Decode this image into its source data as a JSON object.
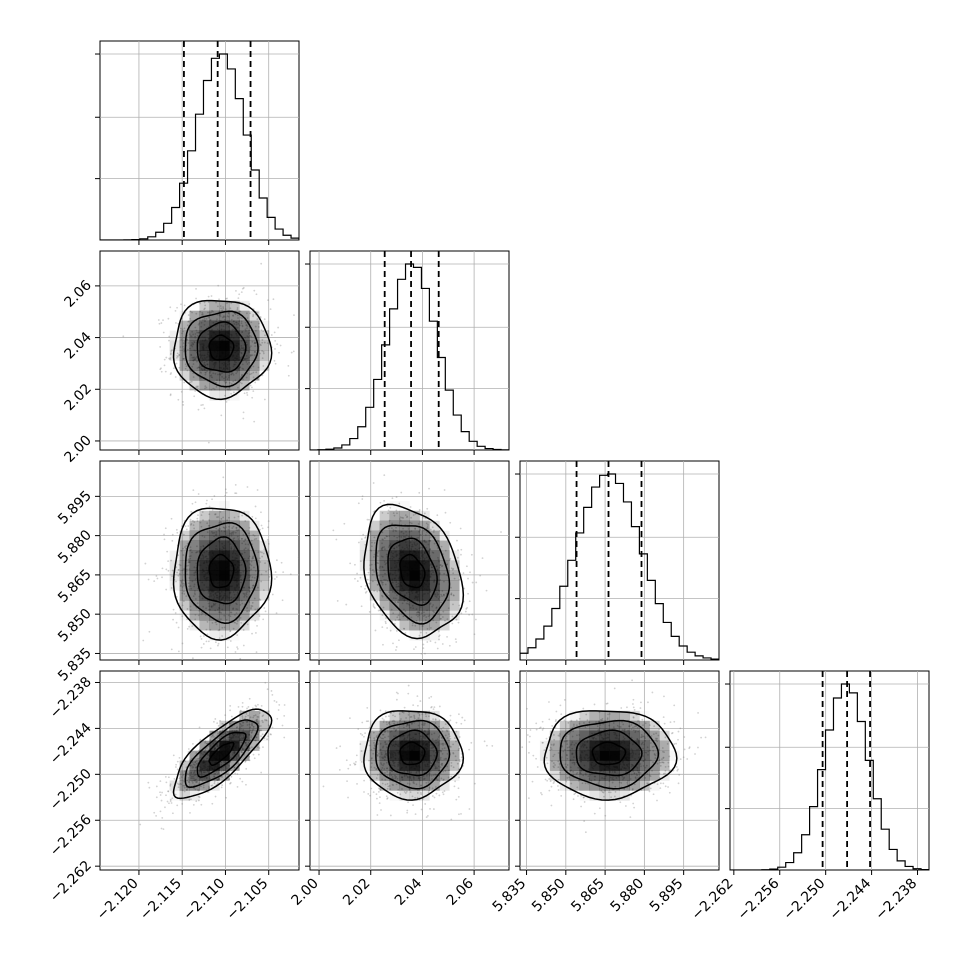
{
  "chart_data": {
    "type": "corner",
    "grid": true,
    "colors": {
      "line": "#000000",
      "points": "#7f7f7f",
      "grid": "#b0b0b0",
      "density": "#000000"
    },
    "params": [
      {
        "center": -2.1105,
        "sigma": 0.0028,
        "range": [
          -2.1245,
          -2.1015
        ],
        "ticks": [
          -2.12,
          -2.115,
          -2.11,
          -2.105
        ],
        "tick_labels": [
          "−2.120",
          "−2.115",
          "−2.110",
          "−2.105"
        ],
        "quantiles": [
          -2.1148,
          -2.1109,
          -2.1071
        ],
        "hist_max": 1.0
      },
      {
        "center": 2.036,
        "sigma": 0.0095,
        "range": [
          1.9965,
          2.0735
        ],
        "ticks": [
          2.0,
          2.02,
          2.04,
          2.06
        ],
        "tick_labels": [
          "2.00",
          "2.02",
          "2.04",
          "2.06"
        ],
        "quantiles": [
          2.0254,
          2.0356,
          2.0463
        ],
        "hist_max": 1.0
      },
      {
        "center": 5.8663,
        "sigma": 0.0125,
        "range": [
          5.8325,
          5.9085
        ],
        "ticks": [
          5.835,
          5.85,
          5.865,
          5.88,
          5.895
        ],
        "tick_labels": [
          "5.835",
          "5.850",
          "5.865",
          "5.880",
          "5.895"
        ],
        "quantiles": [
          5.8541,
          5.8663,
          5.8789
        ],
        "hist_max": 1.0
      },
      {
        "center": -2.2473,
        "sigma": 0.0029,
        "range": [
          -2.2625,
          -2.2365
        ],
        "ticks": [
          -2.262,
          -2.256,
          -2.25,
          -2.244,
          -2.238
        ],
        "tick_labels": [
          "−2.262",
          "−2.256",
          "−2.250",
          "−2.244",
          "−2.238"
        ],
        "quantiles": [
          -2.2504,
          -2.2472,
          -2.2442
        ],
        "hist_max": 1.0
      }
    ],
    "correlations": [
      [
        1.0,
        0.0,
        0.0,
        0.78
      ],
      [
        0.0,
        1.0,
        -0.25,
        0.0
      ],
      [
        0.0,
        -0.25,
        1.0,
        0.0
      ],
      [
        0.78,
        0.0,
        0.0,
        1.0
      ]
    ],
    "contour_levels_sigma": [
      0.5,
      1.0,
      1.5,
      2.0
    ]
  }
}
